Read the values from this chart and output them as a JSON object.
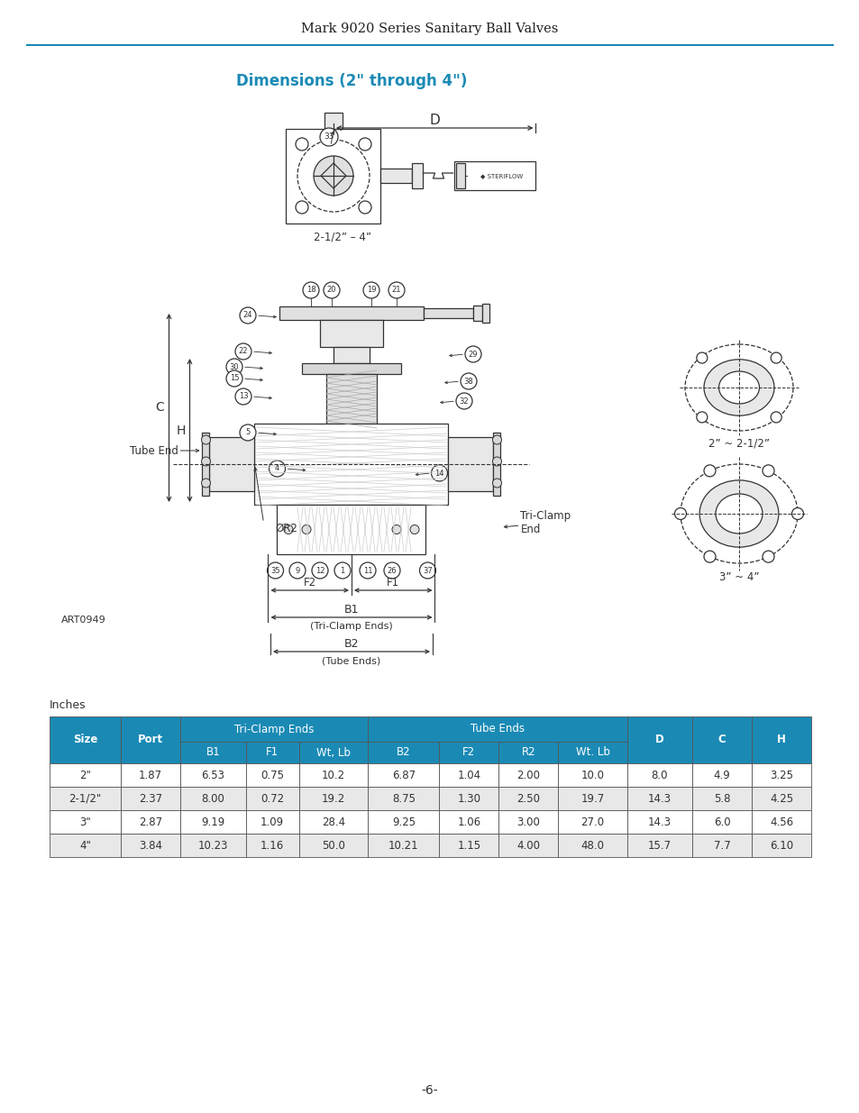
{
  "title_header": "Mark 9020 Series Sanitary Ball Valves",
  "title_header_color": "#231f20",
  "header_line_color": "#1a8ab5",
  "section_title": "Dimensions (2\" through 4\")",
  "section_title_color": "#1a8ab5",
  "table_label": "Inches",
  "table_header_bg": "#1a8ab5",
  "table_header_color": "#ffffff",
  "table_alt_row_bg": "#e8e8e8",
  "columns": [
    "Size",
    "Port",
    "B1",
    "F1",
    "Wt, Lb",
    "B2",
    "F2",
    "R2",
    "Wt. Lb",
    "D",
    "C",
    "H"
  ],
  "rows": [
    [
      "2\"",
      "1.87",
      "6.53",
      "0.75",
      "10.2",
      "6.87",
      "1.04",
      "2.00",
      "10.0",
      "8.0",
      "4.9",
      "3.25"
    ],
    [
      "2-1/2\"",
      "2.37",
      "8.00",
      "0.72",
      "19.2",
      "8.75",
      "1.30",
      "2.50",
      "19.7",
      "14.3",
      "5.8",
      "4.25"
    ],
    [
      "3\"",
      "2.87",
      "9.19",
      "1.09",
      "28.4",
      "9.25",
      "1.06",
      "3.00",
      "27.0",
      "14.3",
      "6.0",
      "4.56"
    ],
    [
      "4\"",
      "3.84",
      "10.23",
      "1.16",
      "50.0",
      "10.21",
      "1.15",
      "4.00",
      "48.0",
      "15.7",
      "7.7",
      "6.10"
    ]
  ],
  "page_number": "-6-",
  "art_number": "ART0949"
}
